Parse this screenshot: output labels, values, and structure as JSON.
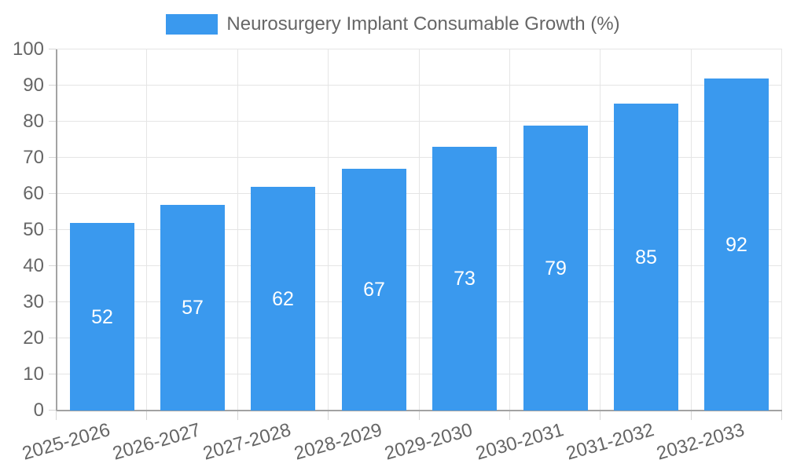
{
  "chart_data": {
    "type": "bar",
    "title": "Neurosurgery Implant Consumable Growth (%)",
    "categories": [
      "2025-2026",
      "2026-2027",
      "2027-2028",
      "2028-2029",
      "2029-2030",
      "2030-2031",
      "2031-2032",
      "2032-2033"
    ],
    "values": [
      52,
      57,
      62,
      67,
      73,
      79,
      85,
      92
    ],
    "xlabel": "",
    "ylabel": "",
    "ylim": [
      0,
      100
    ],
    "ytick_step": 10,
    "grid": true,
    "legend_position": "top",
    "legend_entries": [
      "Neurosurgery Implant Consumable Growth (%)"
    ],
    "colors": {
      "bar": "#3A99EE",
      "bar_value_label": "#FFFFFF",
      "axis": "#A3A3A3",
      "grid": "#E5E5E5",
      "tick": "#D6D6D6",
      "text": "#666666",
      "background": "#FFFFFF"
    }
  }
}
